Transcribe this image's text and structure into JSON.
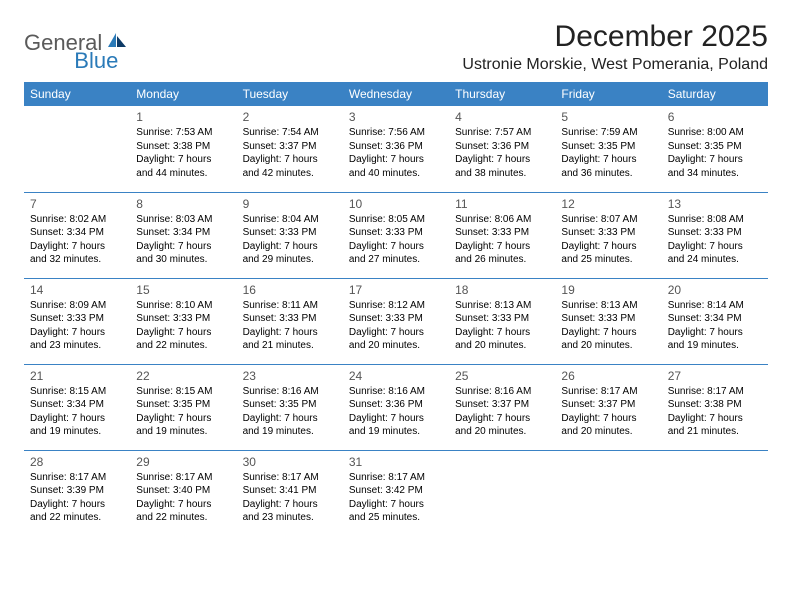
{
  "brand": {
    "part1": "General",
    "part2": "Blue"
  },
  "title": "December 2025",
  "subtitle": "Ustronie Morskie, West Pomerania, Poland",
  "colors": {
    "header_bg": "#3a82c4",
    "header_text": "#ffffff",
    "border": "#3a82c4",
    "logo_gray": "#5a5a5a",
    "logo_blue": "#2a7ab8"
  },
  "day_headers": [
    "Sunday",
    "Monday",
    "Tuesday",
    "Wednesday",
    "Thursday",
    "Friday",
    "Saturday"
  ],
  "weeks": [
    [
      null,
      {
        "n": "1",
        "sr": "7:53 AM",
        "ss": "3:38 PM",
        "dl": "7 hours and 44 minutes."
      },
      {
        "n": "2",
        "sr": "7:54 AM",
        "ss": "3:37 PM",
        "dl": "7 hours and 42 minutes."
      },
      {
        "n": "3",
        "sr": "7:56 AM",
        "ss": "3:36 PM",
        "dl": "7 hours and 40 minutes."
      },
      {
        "n": "4",
        "sr": "7:57 AM",
        "ss": "3:36 PM",
        "dl": "7 hours and 38 minutes."
      },
      {
        "n": "5",
        "sr": "7:59 AM",
        "ss": "3:35 PM",
        "dl": "7 hours and 36 minutes."
      },
      {
        "n": "6",
        "sr": "8:00 AM",
        "ss": "3:35 PM",
        "dl": "7 hours and 34 minutes."
      }
    ],
    [
      {
        "n": "7",
        "sr": "8:02 AM",
        "ss": "3:34 PM",
        "dl": "7 hours and 32 minutes."
      },
      {
        "n": "8",
        "sr": "8:03 AM",
        "ss": "3:34 PM",
        "dl": "7 hours and 30 minutes."
      },
      {
        "n": "9",
        "sr": "8:04 AM",
        "ss": "3:33 PM",
        "dl": "7 hours and 29 minutes."
      },
      {
        "n": "10",
        "sr": "8:05 AM",
        "ss": "3:33 PM",
        "dl": "7 hours and 27 minutes."
      },
      {
        "n": "11",
        "sr": "8:06 AM",
        "ss": "3:33 PM",
        "dl": "7 hours and 26 minutes."
      },
      {
        "n": "12",
        "sr": "8:07 AM",
        "ss": "3:33 PM",
        "dl": "7 hours and 25 minutes."
      },
      {
        "n": "13",
        "sr": "8:08 AM",
        "ss": "3:33 PM",
        "dl": "7 hours and 24 minutes."
      }
    ],
    [
      {
        "n": "14",
        "sr": "8:09 AM",
        "ss": "3:33 PM",
        "dl": "7 hours and 23 minutes."
      },
      {
        "n": "15",
        "sr": "8:10 AM",
        "ss": "3:33 PM",
        "dl": "7 hours and 22 minutes."
      },
      {
        "n": "16",
        "sr": "8:11 AM",
        "ss": "3:33 PM",
        "dl": "7 hours and 21 minutes."
      },
      {
        "n": "17",
        "sr": "8:12 AM",
        "ss": "3:33 PM",
        "dl": "7 hours and 20 minutes."
      },
      {
        "n": "18",
        "sr": "8:13 AM",
        "ss": "3:33 PM",
        "dl": "7 hours and 20 minutes."
      },
      {
        "n": "19",
        "sr": "8:13 AM",
        "ss": "3:33 PM",
        "dl": "7 hours and 20 minutes."
      },
      {
        "n": "20",
        "sr": "8:14 AM",
        "ss": "3:34 PM",
        "dl": "7 hours and 19 minutes."
      }
    ],
    [
      {
        "n": "21",
        "sr": "8:15 AM",
        "ss": "3:34 PM",
        "dl": "7 hours and 19 minutes."
      },
      {
        "n": "22",
        "sr": "8:15 AM",
        "ss": "3:35 PM",
        "dl": "7 hours and 19 minutes."
      },
      {
        "n": "23",
        "sr": "8:16 AM",
        "ss": "3:35 PM",
        "dl": "7 hours and 19 minutes."
      },
      {
        "n": "24",
        "sr": "8:16 AM",
        "ss": "3:36 PM",
        "dl": "7 hours and 19 minutes."
      },
      {
        "n": "25",
        "sr": "8:16 AM",
        "ss": "3:37 PM",
        "dl": "7 hours and 20 minutes."
      },
      {
        "n": "26",
        "sr": "8:17 AM",
        "ss": "3:37 PM",
        "dl": "7 hours and 20 minutes."
      },
      {
        "n": "27",
        "sr": "8:17 AM",
        "ss": "3:38 PM",
        "dl": "7 hours and 21 minutes."
      }
    ],
    [
      {
        "n": "28",
        "sr": "8:17 AM",
        "ss": "3:39 PM",
        "dl": "7 hours and 22 minutes."
      },
      {
        "n": "29",
        "sr": "8:17 AM",
        "ss": "3:40 PM",
        "dl": "7 hours and 22 minutes."
      },
      {
        "n": "30",
        "sr": "8:17 AM",
        "ss": "3:41 PM",
        "dl": "7 hours and 23 minutes."
      },
      {
        "n": "31",
        "sr": "8:17 AM",
        "ss": "3:42 PM",
        "dl": "7 hours and 25 minutes."
      },
      null,
      null,
      null
    ]
  ],
  "labels": {
    "sunrise": "Sunrise: ",
    "sunset": "Sunset: ",
    "daylight": "Daylight: "
  }
}
